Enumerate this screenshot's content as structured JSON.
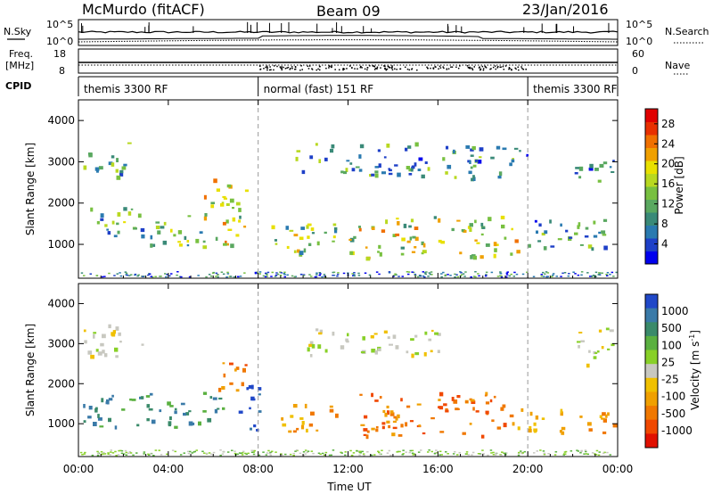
{
  "header": {
    "station": "McMurdo (fitACF)",
    "beam": "Beam 09",
    "date": "23/Jan/2016"
  },
  "top_panels": {
    "nsky_label": "N.Sky",
    "nsearch_label": "N.Search",
    "noise_ticks": [
      "10^5",
      "10^0"
    ],
    "freq_label": "Freq.",
    "freq_unit": "[MHz]",
    "freq_ticks": [
      "18",
      "8"
    ],
    "nave_label": "Nave",
    "nave_ticks": [
      "60",
      "0"
    ],
    "cpid_label": "CPID",
    "cpid_segments": [
      {
        "label": "themis 3300 RF",
        "start_hour": 0,
        "end_hour": 8
      },
      {
        "label": "normal (fast) 151 RF",
        "start_hour": 8,
        "end_hour": 20
      },
      {
        "label": "themis 3300 RF",
        "start_hour": 20,
        "end_hour": 24
      }
    ]
  },
  "chart_data": [
    {
      "type": "heatmap",
      "name": "power",
      "ylabel": "Slant Range [km]",
      "ylim": [
        180,
        4500
      ],
      "xlim_hours": [
        0,
        24
      ],
      "yticks": [
        1000,
        2000,
        3000,
        4000
      ],
      "colorbar": {
        "label": "Power [dB]",
        "ticks": [
          4,
          8,
          12,
          16,
          20,
          24,
          28
        ],
        "range": [
          0,
          31
        ],
        "colors": [
          "#0000ee",
          "#1e40c8",
          "#2a7ab0",
          "#3a8a78",
          "#5aa860",
          "#78c040",
          "#b8d820",
          "#e8e000",
          "#f0a000",
          "#f07000",
          "#e83000",
          "#e00000"
        ]
      },
      "echo_regions": [
        {
          "x0": 0.2,
          "x1": 2.2,
          "y0": 2650,
          "y1": 3500,
          "level": 9
        },
        {
          "x0": 0.2,
          "x1": 3.0,
          "y0": 1200,
          "y1": 1950,
          "level": 11
        },
        {
          "x0": 3.0,
          "x1": 5.5,
          "y0": 1000,
          "y1": 1800,
          "level": 13
        },
        {
          "x0": 5.5,
          "x1": 7.5,
          "y0": 900,
          "y1": 2600,
          "level": 18
        },
        {
          "x0": 8.5,
          "x1": 11.5,
          "y0": 700,
          "y1": 1600,
          "level": 14
        },
        {
          "x0": 9.5,
          "x1": 15.0,
          "y0": 2700,
          "y1": 3500,
          "level": 10
        },
        {
          "x0": 12.0,
          "x1": 19.5,
          "y0": 700,
          "y1": 1700,
          "level": 17
        },
        {
          "x0": 15.0,
          "x1": 20.0,
          "y0": 2600,
          "y1": 3400,
          "level": 9
        },
        {
          "x0": 20.0,
          "x1": 23.8,
          "y0": 900,
          "y1": 1700,
          "level": 9
        },
        {
          "x0": 22.0,
          "x1": 23.8,
          "y0": 2500,
          "y1": 3200,
          "level": 8
        }
      ]
    },
    {
      "type": "heatmap",
      "name": "velocity",
      "ylabel": "Slant Range [km]",
      "xlabel": "Time UT",
      "ylim": [
        180,
        4500
      ],
      "xlim_hours": [
        0,
        24
      ],
      "yticks": [
        1000,
        2000,
        3000,
        4000
      ],
      "xtick_labels": [
        "00:00",
        "04:00",
        "08:00",
        "12:00",
        "16:00",
        "20:00",
        "00:00"
      ],
      "colorbar": {
        "label": "Velocity [m s^-1]",
        "ticks": [
          "1000",
          "500",
          "100",
          "25",
          "-25",
          "-100",
          "-500",
          "-1000"
        ],
        "colors": [
          "#2048c8",
          "#3a7aa8",
          "#3a8a6a",
          "#5ab040",
          "#88d028",
          "#c8c8c0",
          "#f0c000",
          "#f0a000",
          "#f07800",
          "#f04800",
          "#e01000"
        ]
      },
      "echo_regions": [
        {
          "x0": 0.2,
          "x1": 3.0,
          "y0": 2700,
          "y1": 3500,
          "class": 5
        },
        {
          "x0": 0.2,
          "x1": 4.5,
          "y0": 900,
          "y1": 1800,
          "class": 2
        },
        {
          "x0": 4.5,
          "x1": 6.5,
          "y0": 1000,
          "y1": 1800,
          "class": 2
        },
        {
          "x0": 6.0,
          "x1": 7.5,
          "y0": 1800,
          "y1": 2600,
          "class": 8
        },
        {
          "x0": 7.0,
          "x1": 8.0,
          "y0": 700,
          "y1": 2000,
          "class": 0
        },
        {
          "x0": 9.0,
          "x1": 11.5,
          "y0": 800,
          "y1": 1500,
          "class": 7
        },
        {
          "x0": 10.0,
          "x1": 16.0,
          "y0": 2700,
          "y1": 3400,
          "class": 5
        },
        {
          "x0": 12.5,
          "x1": 19.5,
          "y0": 700,
          "y1": 1800,
          "class": 8
        },
        {
          "x0": 19.5,
          "x1": 23.8,
          "y0": 800,
          "y1": 1400,
          "class": 7
        },
        {
          "x0": 22.0,
          "x1": 23.8,
          "y0": 2500,
          "y1": 3400,
          "class": 5
        }
      ]
    }
  ]
}
